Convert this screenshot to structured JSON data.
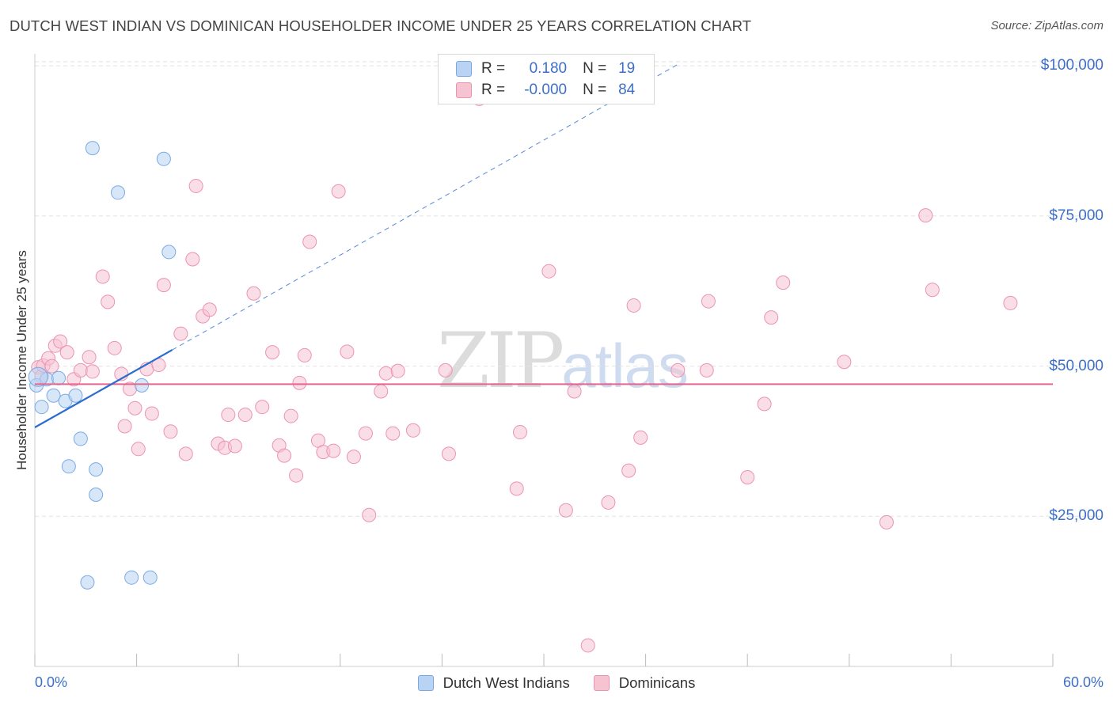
{
  "title": "DUTCH WEST INDIAN VS DOMINICAN HOUSEHOLDER INCOME UNDER 25 YEARS CORRELATION CHART",
  "source": "Source: ZipAtlas.com",
  "watermark": {
    "zip": "ZIP",
    "atlas": "atlas"
  },
  "colors": {
    "blue_fill": "#b8d3f3",
    "blue_stroke": "#7aaae6",
    "blue_line": "#2a6ccf",
    "pink_fill": "#f6c3d3",
    "pink_stroke": "#ec93b0",
    "pink_line": "#e6658f",
    "axis_text": "#3d6fc8",
    "grid": "#dddddd"
  },
  "legend": {
    "series1": {
      "r_label": "R =",
      "r_value": "0.180",
      "n_label": "N =",
      "n_value": "19"
    },
    "series2": {
      "r_label": "R =",
      "r_value": "-0.000",
      "n_label": "N =",
      "n_value": "84"
    }
  },
  "bottom_legend": {
    "series1": "Dutch West Indians",
    "series2": "Dominicans"
  },
  "chart_data": {
    "type": "scatter",
    "title": "DUTCH WEST INDIAN VS DOMINICAN HOUSEHOLDER INCOME UNDER 25 YEARS CORRELATION CHART",
    "xlabel": "",
    "ylabel": "Householder Income Under 25 years",
    "xlim": [
      0,
      60
    ],
    "ylim": [
      0,
      102000
    ],
    "x_tick_labels": [
      "0.0%",
      "60.0%"
    ],
    "y_ticks": [
      {
        "value": 25000,
        "label": "$25,000"
      },
      {
        "value": 50000,
        "label": "$50,000"
      },
      {
        "value": 75000,
        "label": "$75,000"
      },
      {
        "value": 100000,
        "label": "$100,000"
      }
    ],
    "series": [
      {
        "name": "Dutch West Indians",
        "color": "#b8d3f3",
        "r": 0.18,
        "n": 19,
        "trend": {
          "x0": 0,
          "y0": 39800,
          "x1": 8.1,
          "y1": 52700,
          "dash_to_x": 38,
          "dash_to_y": 100400
        },
        "points": [
          [
            0.1,
            46800
          ],
          [
            0.4,
            43200
          ],
          [
            0.7,
            47800
          ],
          [
            1.1,
            45100
          ],
          [
            1.4,
            48000
          ],
          [
            1.8,
            44200
          ],
          [
            2.4,
            45100
          ],
          [
            2.7,
            37900
          ],
          [
            2.0,
            33300
          ],
          [
            3.4,
            86300
          ],
          [
            4.9,
            78900
          ],
          [
            7.6,
            84500
          ],
          [
            7.9,
            69000
          ],
          [
            3.6,
            32800
          ],
          [
            3.6,
            28600
          ],
          [
            6.3,
            46800
          ],
          [
            3.1,
            14000
          ],
          [
            5.7,
            14800
          ],
          [
            6.8,
            14800
          ]
        ]
      },
      {
        "name": "Dominicans",
        "color": "#f6c3d3",
        "r": -0.0,
        "n": 84,
        "trend": {
          "x0": 0,
          "y0": 47000,
          "x1": 60,
          "y1": 47000
        },
        "points": [
          [
            0.2,
            49800
          ],
          [
            0.4,
            48300
          ],
          [
            0.5,
            50100
          ],
          [
            0.8,
            51300
          ],
          [
            1.0,
            50000
          ],
          [
            1.2,
            53400
          ],
          [
            1.5,
            54100
          ],
          [
            1.9,
            52300
          ],
          [
            2.3,
            47800
          ],
          [
            2.7,
            49300
          ],
          [
            3.2,
            51500
          ],
          [
            3.4,
            49100
          ],
          [
            4.0,
            64900
          ],
          [
            4.3,
            60700
          ],
          [
            4.7,
            53000
          ],
          [
            5.1,
            48700
          ],
          [
            5.3,
            40000
          ],
          [
            5.6,
            46200
          ],
          [
            5.9,
            43000
          ],
          [
            6.1,
            36200
          ],
          [
            6.6,
            49500
          ],
          [
            6.9,
            42100
          ],
          [
            7.3,
            50200
          ],
          [
            7.6,
            63500
          ],
          [
            8.0,
            39100
          ],
          [
            8.6,
            55400
          ],
          [
            8.9,
            35400
          ],
          [
            9.3,
            67800
          ],
          [
            9.5,
            80000
          ],
          [
            9.9,
            58300
          ],
          [
            10.3,
            59400
          ],
          [
            10.8,
            37100
          ],
          [
            11.2,
            36400
          ],
          [
            11.4,
            41900
          ],
          [
            11.8,
            36700
          ],
          [
            12.4,
            41900
          ],
          [
            12.9,
            62100
          ],
          [
            13.4,
            43200
          ],
          [
            14.0,
            52300
          ],
          [
            14.4,
            36800
          ],
          [
            14.7,
            35100
          ],
          [
            15.1,
            41700
          ],
          [
            15.4,
            31800
          ],
          [
            15.6,
            47200
          ],
          [
            15.9,
            51800
          ],
          [
            16.2,
            70700
          ],
          [
            16.7,
            37600
          ],
          [
            17.0,
            35700
          ],
          [
            17.6,
            35900
          ],
          [
            17.9,
            79100
          ],
          [
            18.4,
            52400
          ],
          [
            18.8,
            34900
          ],
          [
            19.5,
            38800
          ],
          [
            19.7,
            25200
          ],
          [
            20.4,
            45800
          ],
          [
            20.7,
            48800
          ],
          [
            21.1,
            38800
          ],
          [
            21.4,
            49200
          ],
          [
            22.3,
            39300
          ],
          [
            24.2,
            49300
          ],
          [
            24.4,
            35400
          ],
          [
            26.2,
            94500
          ],
          [
            28.4,
            29600
          ],
          [
            28.6,
            39000
          ],
          [
            30.3,
            65800
          ],
          [
            31.3,
            26000
          ],
          [
            31.8,
            45800
          ],
          [
            32.6,
            3500
          ],
          [
            33.8,
            27300
          ],
          [
            35.0,
            32600
          ],
          [
            35.3,
            60100
          ],
          [
            35.7,
            38100
          ],
          [
            37.9,
            49300
          ],
          [
            39.7,
            60800
          ],
          [
            39.6,
            49300
          ],
          [
            42.0,
            31500
          ],
          [
            43.0,
            43700
          ],
          [
            43.4,
            58100
          ],
          [
            44.1,
            63900
          ],
          [
            47.7,
            50700
          ],
          [
            50.2,
            24000
          ],
          [
            52.5,
            75100
          ],
          [
            52.9,
            62700
          ],
          [
            57.5,
            60500
          ]
        ]
      }
    ]
  }
}
